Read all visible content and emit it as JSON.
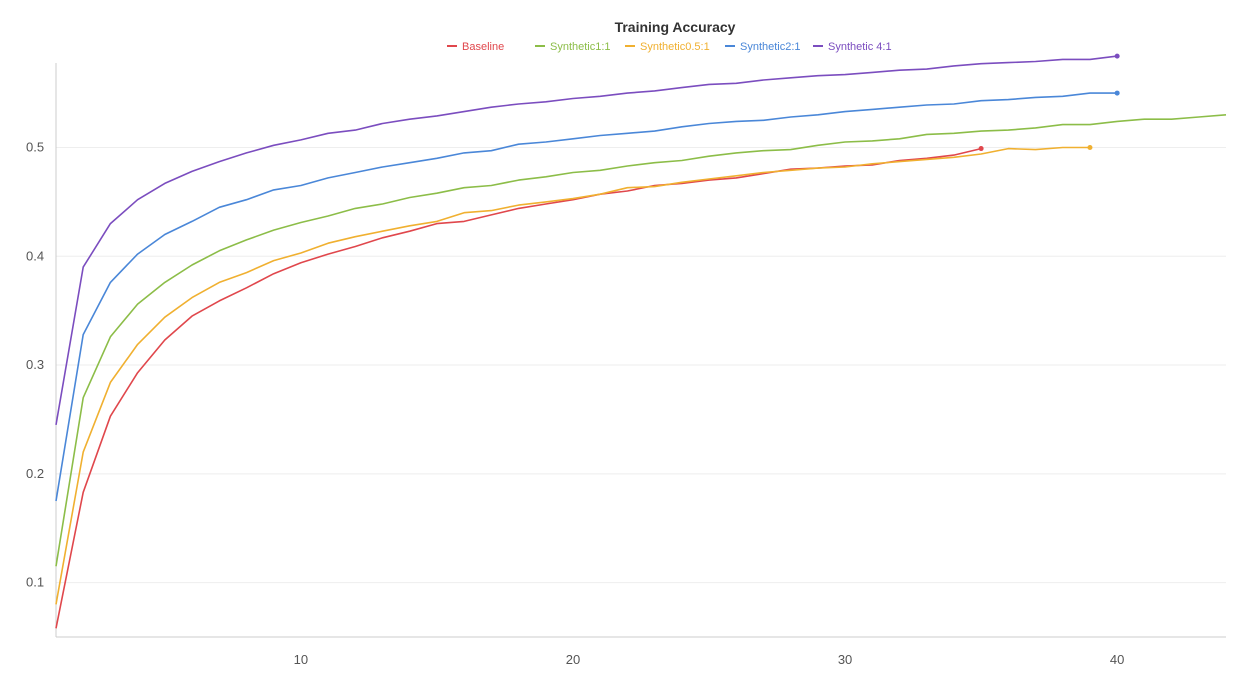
{
  "chart_data": {
    "type": "line",
    "title": "Training Accuracy",
    "xlabel": "",
    "ylabel": "",
    "xlim": [
      1,
      44
    ],
    "ylim": [
      0.05,
      0.585
    ],
    "x_ticks": [
      10,
      20,
      30,
      40
    ],
    "y_ticks": [
      0.1,
      0.2,
      0.3,
      0.4,
      0.5
    ],
    "grid": "horizontal",
    "legend": "top-center",
    "series": [
      {
        "name": "Baseline",
        "color": "#e0474c",
        "x": [
          1,
          2,
          3,
          4,
          5,
          6,
          7,
          8,
          9,
          10,
          11,
          12,
          13,
          14,
          15,
          16,
          17,
          18,
          19,
          20,
          21,
          22,
          23,
          24,
          25,
          26,
          27,
          28,
          29,
          30,
          31,
          32,
          33,
          34,
          35
        ],
        "values": [
          0.058,
          0.183,
          0.253,
          0.293,
          0.323,
          0.345,
          0.359,
          0.371,
          0.384,
          0.394,
          0.402,
          0.409,
          0.417,
          0.423,
          0.43,
          0.432,
          0.438,
          0.444,
          0.448,
          0.452,
          0.457,
          0.46,
          0.465,
          0.467,
          0.47,
          0.472,
          0.476,
          0.48,
          0.481,
          0.483,
          0.484,
          0.488,
          0.49,
          0.493,
          0.499
        ]
      },
      {
        "name": "Synthetic1:1",
        "color": "#8cbd48",
        "x": [
          1,
          2,
          3,
          4,
          5,
          6,
          7,
          8,
          9,
          10,
          11,
          12,
          13,
          14,
          15,
          16,
          17,
          18,
          19,
          20,
          21,
          22,
          23,
          24,
          25,
          26,
          27,
          28,
          29,
          30,
          31,
          32,
          33,
          34,
          35,
          36,
          37,
          38,
          39,
          40,
          41,
          42,
          43,
          44
        ],
        "values": [
          0.115,
          0.27,
          0.326,
          0.356,
          0.376,
          0.392,
          0.405,
          0.415,
          0.424,
          0.431,
          0.437,
          0.444,
          0.448,
          0.454,
          0.458,
          0.463,
          0.465,
          0.47,
          0.473,
          0.477,
          0.479,
          0.483,
          0.486,
          0.488,
          0.492,
          0.495,
          0.497,
          0.498,
          0.502,
          0.505,
          0.506,
          0.508,
          0.512,
          0.513,
          0.515,
          0.516,
          0.518,
          0.521,
          0.521,
          0.524,
          0.526,
          0.526,
          0.528,
          0.53
        ]
      },
      {
        "name": "Synthetic0.5:1",
        "color": "#f0b030",
        "x": [
          1,
          2,
          3,
          4,
          5,
          6,
          7,
          8,
          9,
          10,
          11,
          12,
          13,
          14,
          15,
          16,
          17,
          18,
          19,
          20,
          21,
          22,
          23,
          24,
          25,
          26,
          27,
          28,
          29,
          30,
          31,
          32,
          33,
          34,
          35,
          36,
          37,
          38,
          39
        ],
        "values": [
          0.08,
          0.22,
          0.284,
          0.319,
          0.344,
          0.362,
          0.376,
          0.385,
          0.396,
          0.403,
          0.412,
          0.418,
          0.423,
          0.428,
          0.432,
          0.44,
          0.442,
          0.447,
          0.45,
          0.453,
          0.457,
          0.463,
          0.464,
          0.468,
          0.471,
          0.474,
          0.477,
          0.479,
          0.481,
          0.482,
          0.485,
          0.487,
          0.489,
          0.491,
          0.494,
          0.499,
          0.498,
          0.5,
          0.5
        ]
      },
      {
        "name": "Synthetic2:1",
        "color": "#4a87d8",
        "x": [
          1,
          2,
          3,
          4,
          5,
          6,
          7,
          8,
          9,
          10,
          11,
          12,
          13,
          14,
          15,
          16,
          17,
          18,
          19,
          20,
          21,
          22,
          23,
          24,
          25,
          26,
          27,
          28,
          29,
          30,
          31,
          32,
          33,
          34,
          35,
          36,
          37,
          38,
          39,
          40
        ],
        "values": [
          0.175,
          0.328,
          0.376,
          0.402,
          0.42,
          0.432,
          0.445,
          0.452,
          0.461,
          0.465,
          0.472,
          0.477,
          0.482,
          0.486,
          0.49,
          0.495,
          0.497,
          0.503,
          0.505,
          0.508,
          0.511,
          0.513,
          0.515,
          0.519,
          0.522,
          0.524,
          0.525,
          0.528,
          0.53,
          0.533,
          0.535,
          0.537,
          0.539,
          0.54,
          0.543,
          0.544,
          0.546,
          0.547,
          0.55,
          0.55
        ]
      },
      {
        "name": "Synthetic 4:1",
        "color": "#7b4dbf",
        "x": [
          1,
          2,
          3,
          4,
          5,
          6,
          7,
          8,
          9,
          10,
          11,
          12,
          13,
          14,
          15,
          16,
          17,
          18,
          19,
          20,
          21,
          22,
          23,
          24,
          25,
          26,
          27,
          28,
          29,
          30,
          31,
          32,
          33,
          34,
          35,
          36,
          37,
          38,
          39,
          40
        ],
        "values": [
          0.245,
          0.39,
          0.43,
          0.452,
          0.467,
          0.478,
          0.487,
          0.495,
          0.502,
          0.507,
          0.513,
          0.516,
          0.522,
          0.526,
          0.529,
          0.533,
          0.537,
          0.54,
          0.542,
          0.545,
          0.547,
          0.55,
          0.552,
          0.555,
          0.558,
          0.559,
          0.562,
          0.564,
          0.566,
          0.567,
          0.569,
          0.571,
          0.572,
          0.575,
          0.577,
          0.578,
          0.579,
          0.581,
          0.581,
          0.584
        ]
      }
    ]
  }
}
